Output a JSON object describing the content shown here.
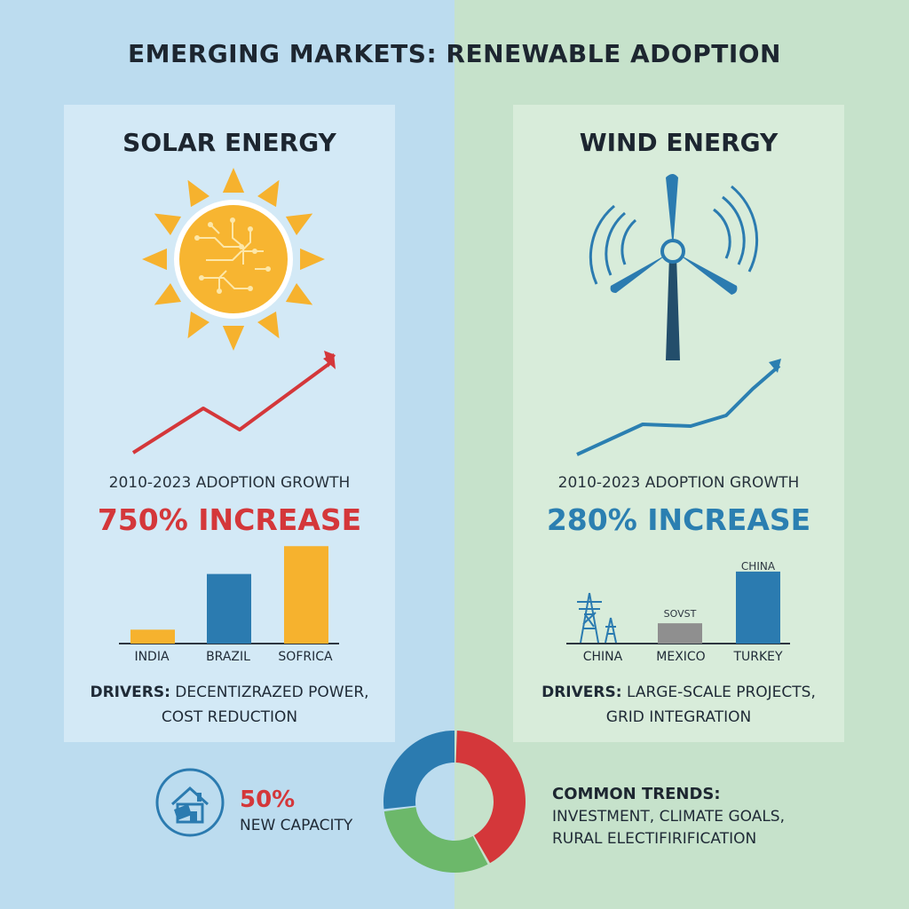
{
  "title": "EMERGING MARKETS: RENEWABLE ADOPTION",
  "solar": {
    "heading": "SOLAR ENERGY",
    "growth_label": "2010-2023 ADOPTION GROWTH",
    "increase": "750% INCREASE",
    "bars": [
      {
        "label": "INDIA",
        "value": 14,
        "color": "#f6b22e"
      },
      {
        "label": "BRAZIL",
        "value": 70,
        "color": "#2b7bb0"
      },
      {
        "label": "SOFRICA",
        "value": 98,
        "color": "#f6b22e"
      }
    ],
    "drivers_label": "DRIVERS:",
    "drivers_text_1": "DECENTIZRAZED POWER,",
    "drivers_text_2": "COST REDUCTION",
    "trend_color": "#d4373a",
    "icon": "sun-circuit-icon"
  },
  "wind": {
    "heading": "WIND ENERGY",
    "growth_label": "2010-2023 ADOPTION GROWTH",
    "increase": "280% INCREASE",
    "bars": [
      {
        "label": "CHINA",
        "value": 0,
        "color": "#2b7bb0",
        "top_label": ""
      },
      {
        "label": "MEXICO",
        "value": 22,
        "color": "#8f8f8f",
        "top_label": "SOVST"
      },
      {
        "label": "TURKEY",
        "value": 78,
        "color": "#2b7bb0",
        "top_label": "CHINA"
      }
    ],
    "drivers_label": "DRIVERS:",
    "drivers_text_1": "LARGE-SCALE PROJECTS,",
    "drivers_text_2": "GRID INTEGRATION",
    "trend_color": "#2b7fb1",
    "icon": "wind-turbine-icon"
  },
  "bottom": {
    "capacity_pct": "50%",
    "capacity_label": "NEW CAPACITY",
    "trends_title": "COMMON TRENDS:",
    "trends_line_1": "INVESTMENT, CLIMATE GOALS,",
    "trends_line_2": "RURAL ELECTIFIRIFICATION",
    "donut_colors": [
      "#d4373a",
      "#6cb86a",
      "#2b7bb0"
    ],
    "icon": "solar-house-icon"
  }
}
